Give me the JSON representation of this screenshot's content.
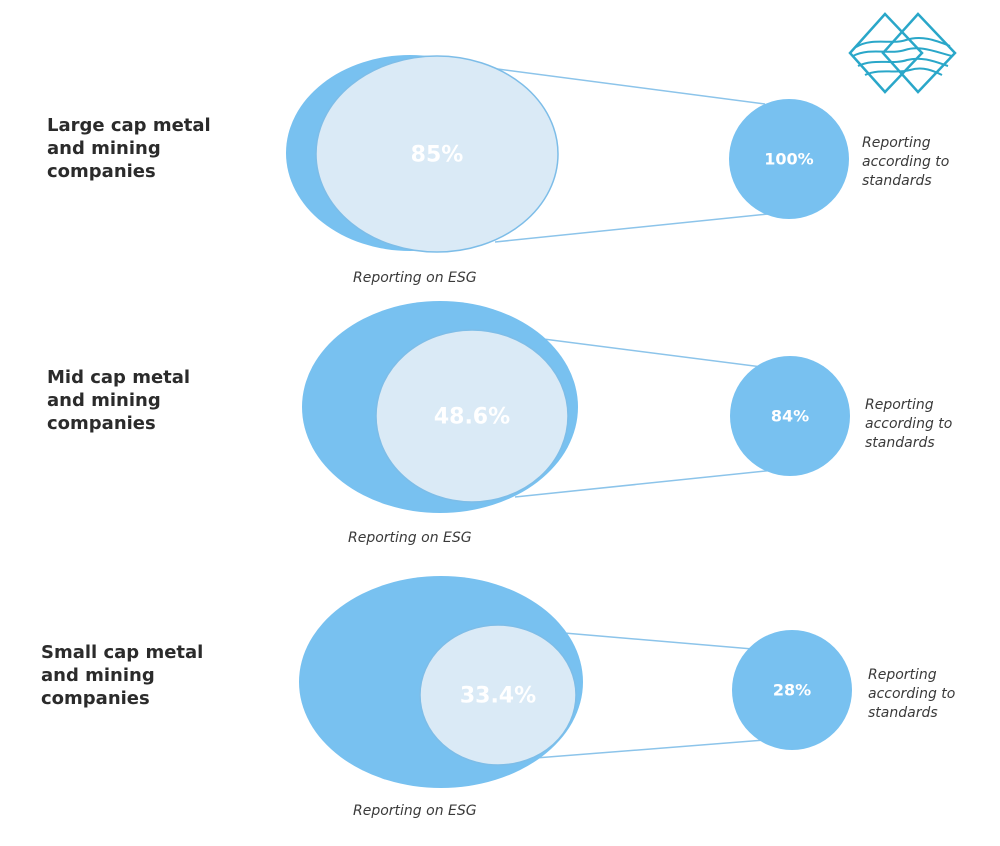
{
  "rows": [
    {
      "title": "Large cap metal\nand mining\ncompanies",
      "esg_value": "85%",
      "esg_caption": "Reporting on ESG",
      "standards_value": "100%",
      "standards_caption": "Reporting\naccording to\nstandards"
    },
    {
      "title": "Mid cap metal\nand mining\ncompanies",
      "esg_value": "48.6%",
      "esg_caption": "Reporting on ESG",
      "standards_value": "84%",
      "standards_caption": "Reporting\naccording to\nstandards"
    },
    {
      "title": "Small cap metal\nand mining\ncompanies",
      "esg_value": "33.4%",
      "esg_caption": "Reporting on ESG",
      "standards_value": "28%",
      "standards_caption": "Reporting\naccording to\nstandards"
    }
  ],
  "colors": {
    "outer": "#78c1f0",
    "inner": "#daeaf6",
    "inner_stroke": "#7dbde8",
    "connector": "#8cc4ea",
    "logo": "#2aa7c9"
  },
  "logo_icon": "diamond-logo-icon"
}
